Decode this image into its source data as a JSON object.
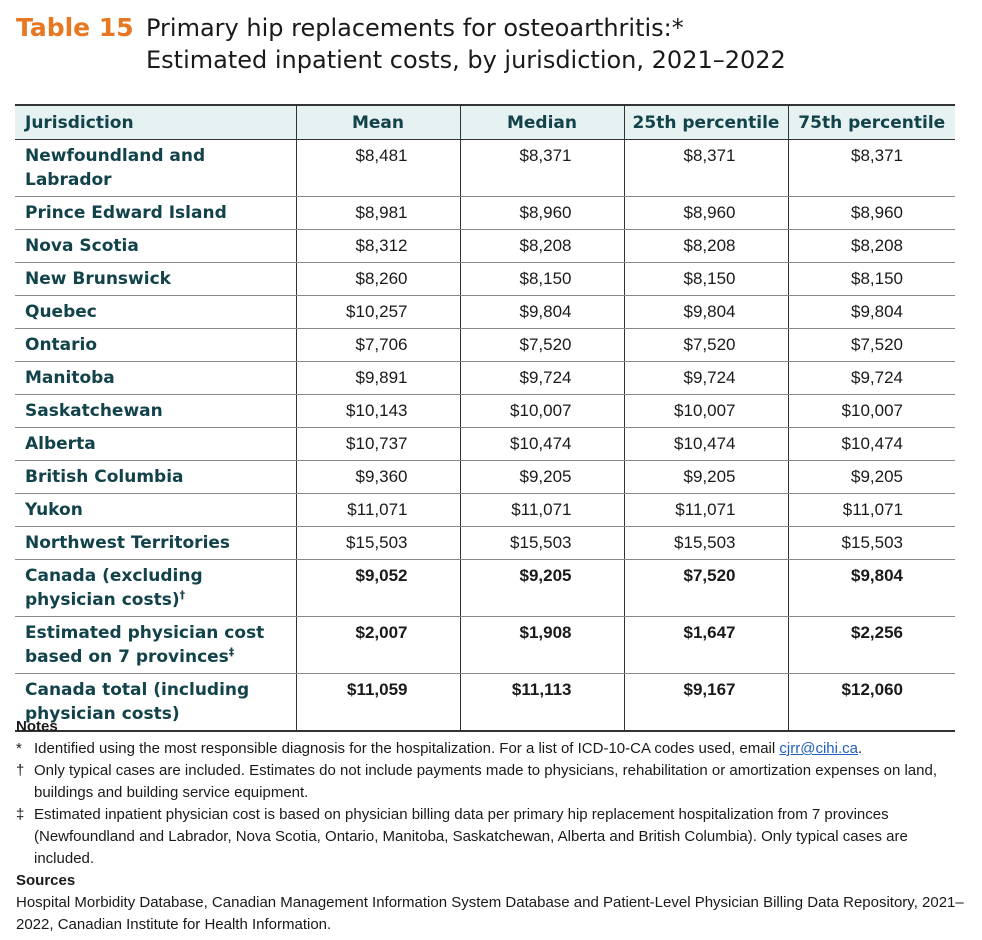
{
  "title": {
    "table_number": "Table 15",
    "line1": "Primary hip replacements for osteoarthritis:*",
    "line2": "Estimated inpatient costs, by jurisdiction, 2021–2022"
  },
  "table": {
    "headers": [
      "Jurisdiction",
      "Mean",
      "Median",
      "25th percentile",
      "75th percentile"
    ],
    "rows": [
      {
        "jurisdiction": "Newfoundland and Labrador",
        "mean": "$8,481",
        "median": "$8,371",
        "p25": "$8,371",
        "p75": "$8,371"
      },
      {
        "jurisdiction": "Prince Edward Island",
        "mean": "$8,981",
        "median": "$8,960",
        "p25": "$8,960",
        "p75": "$8,960"
      },
      {
        "jurisdiction": "Nova Scotia",
        "mean": "$8,312",
        "median": "$8,208",
        "p25": "$8,208",
        "p75": "$8,208"
      },
      {
        "jurisdiction": "New Brunswick",
        "mean": "$8,260",
        "median": "$8,150",
        "p25": "$8,150",
        "p75": "$8,150"
      },
      {
        "jurisdiction": "Quebec",
        "mean": "$10,257",
        "median": "$9,804",
        "p25": "$9,804",
        "p75": "$9,804"
      },
      {
        "jurisdiction": "Ontario",
        "mean": "$7,706",
        "median": "$7,520",
        "p25": "$7,520",
        "p75": "$7,520"
      },
      {
        "jurisdiction": "Manitoba",
        "mean": "$9,891",
        "median": "$9,724",
        "p25": "$9,724",
        "p75": "$9,724"
      },
      {
        "jurisdiction": "Saskatchewan",
        "mean": "$10,143",
        "median": "$10,007",
        "p25": "$10,007",
        "p75": "$10,007"
      },
      {
        "jurisdiction": "Alberta",
        "mean": "$10,737",
        "median": "$10,474",
        "p25": "$10,474",
        "p75": "$10,474"
      },
      {
        "jurisdiction": "British Columbia",
        "mean": "$9,360",
        "median": "$9,205",
        "p25": "$9,205",
        "p75": "$9,205"
      },
      {
        "jurisdiction": "Yukon",
        "mean": "$11,071",
        "median": "$11,071",
        "p25": "$11,071",
        "p75": "$11,071"
      },
      {
        "jurisdiction": "Northwest Territories",
        "mean": "$15,503",
        "median": "$15,503",
        "p25": "$15,503",
        "p75": "$15,503"
      }
    ],
    "summary_rows": [
      {
        "line1": "Canada (excluding",
        "line2": "physician costs)",
        "mark": "†",
        "mean": "$9,052",
        "median": "$9,205",
        "p25": "$7,520",
        "p75": "$9,804"
      },
      {
        "line1": "Estimated physician cost",
        "line2": "based on 7 provinces",
        "mark": "‡",
        "mean": "$2,007",
        "median": "$1,908",
        "p25": "$1,647",
        "p75": "$2,256"
      },
      {
        "line1": "Canada total (including",
        "line2": "physician costs)",
        "mark": "",
        "mean": "$11,059",
        "median": "$11,113",
        "p25": "$9,167",
        "p75": "$12,060"
      }
    ]
  },
  "notes": {
    "heading": "Notes",
    "items": [
      {
        "mark": "*",
        "text": "Identified using the most responsible diagnosis for the hospitalization. For a list of ICD-10-CA codes used, email ",
        "link": "cjrr@cihi.ca",
        "after": "."
      },
      {
        "mark": "†",
        "text": "Only typical cases are included. Estimates do not include payments made to physicians, rehabilitation or amortization expenses on land, buildings and building service equipment.",
        "link": "",
        "after": ""
      },
      {
        "mark": "‡",
        "text": "Estimated inpatient physician cost is based on physician billing data per primary hip replacement hospitalization from 7 provinces (Newfoundland and Labrador, Nova Scotia, Ontario, Manitoba, Saskatchewan, Alberta and British Columbia). Only typical cases are included.",
        "link": "",
        "after": ""
      }
    ]
  },
  "sources": {
    "heading": "Sources",
    "text": "Hospital Morbidity Database, Canadian Management Information System Database and Patient-Level Physician Billing Data Repository, 2021–2022, Canadian Institute for Health Information."
  }
}
